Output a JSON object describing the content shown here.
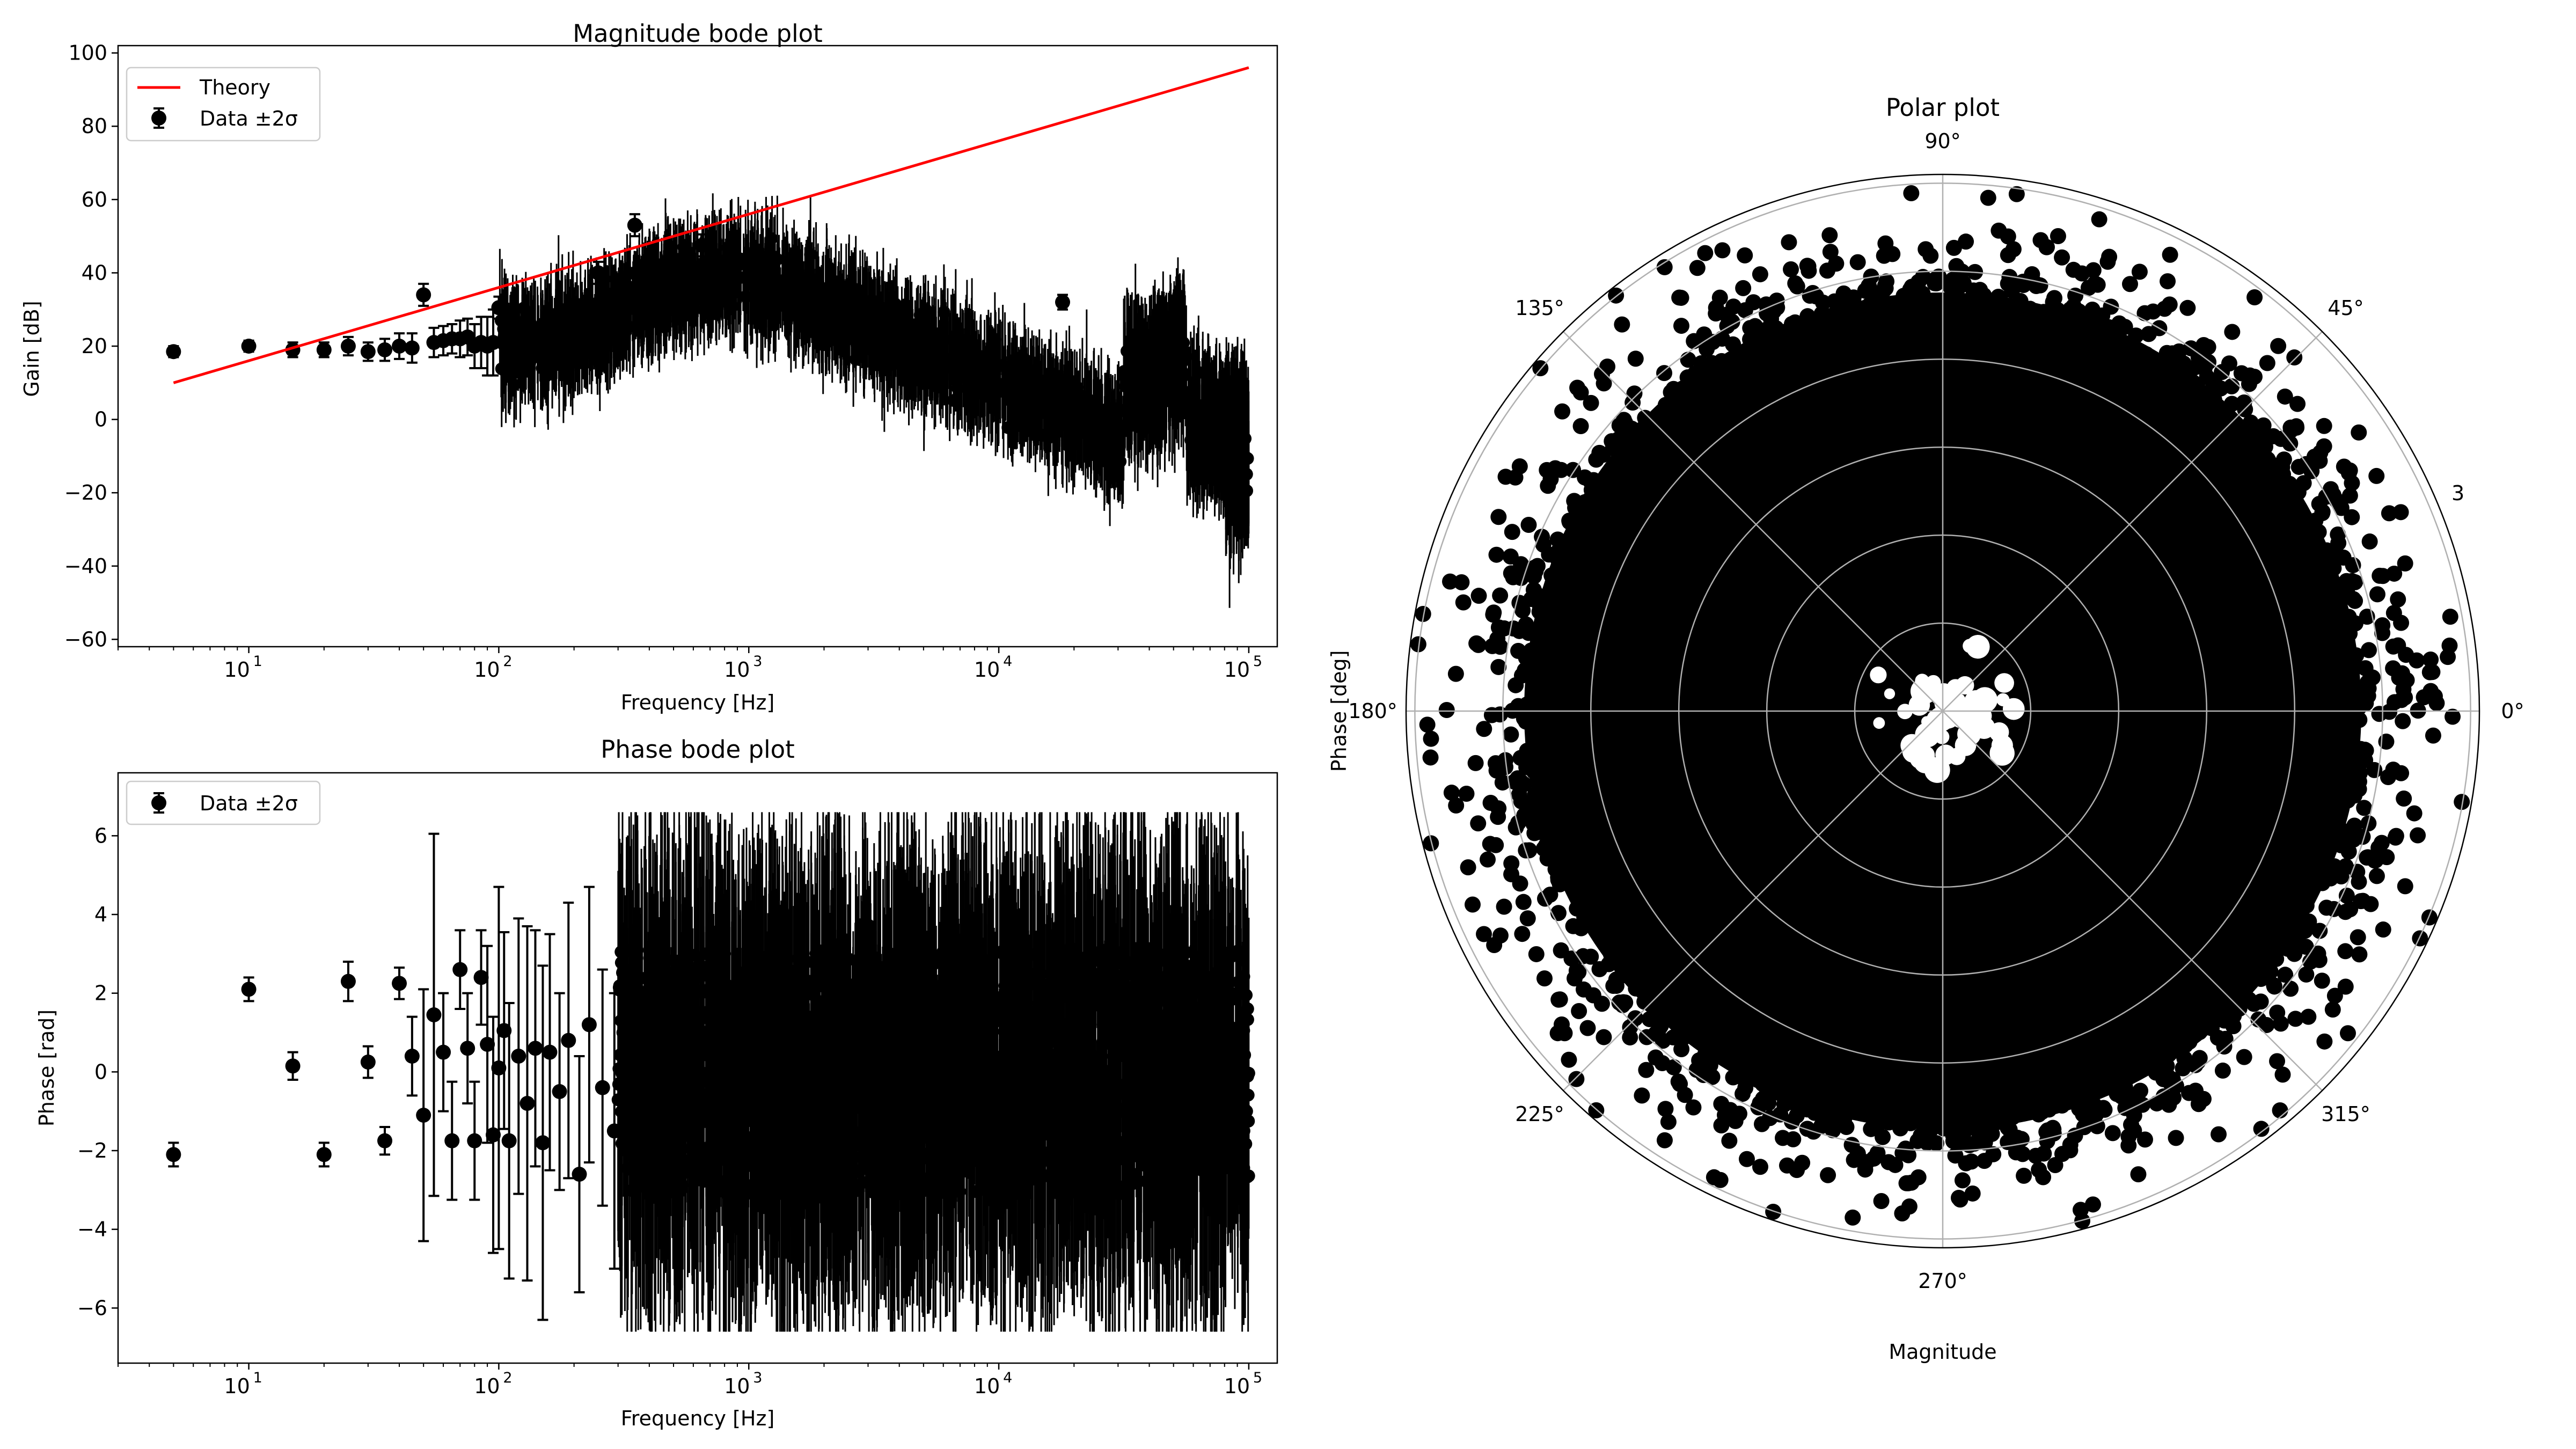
{
  "chart_data": [
    {
      "type": "line",
      "title": "Magnitude bode plot",
      "xlabel": "Frequency [Hz]",
      "ylabel": "Gain [dB]",
      "xscale": "log",
      "xlim": [
        3.0,
        130000
      ],
      "ylim": [
        -62,
        102
      ],
      "yticks": [
        -60,
        -40,
        -20,
        0,
        20,
        40,
        60,
        80,
        100
      ],
      "xticks": [
        {
          "base": "10",
          "exp": "1",
          "value": 10
        },
        {
          "base": "10",
          "exp": "2",
          "value": 100
        },
        {
          "base": "10",
          "exp": "3",
          "value": 1000
        },
        {
          "base": "10",
          "exp": "4",
          "value": 10000
        },
        {
          "base": "10",
          "exp": "5",
          "value": 100000
        }
      ],
      "legend_position": "upper-left",
      "legend": [
        "Theory",
        "Data ±2σ"
      ],
      "theory": {
        "name": "Theory",
        "color": "#ff0000",
        "x": [
          5,
          100000
        ],
        "y": [
          10,
          96
        ]
      },
      "data": {
        "name": "Data ±2σ",
        "color": "#000000",
        "points": [
          {
            "x": 5,
            "y": 18.5,
            "e": 1.5
          },
          {
            "x": 10,
            "y": 20,
            "e": 1.5
          },
          {
            "x": 15,
            "y": 19,
            "e": 2
          },
          {
            "x": 20,
            "y": 19,
            "e": 2
          },
          {
            "x": 25,
            "y": 20,
            "e": 2.5
          },
          {
            "x": 30,
            "y": 18.5,
            "e": 2.5
          },
          {
            "x": 35,
            "y": 19,
            "e": 3
          },
          {
            "x": 40,
            "y": 20,
            "e": 3.5
          },
          {
            "x": 45,
            "y": 19.5,
            "e": 4
          },
          {
            "x": 50,
            "y": 34,
            "e": 3
          },
          {
            "x": 55,
            "y": 21,
            "e": 4
          },
          {
            "x": 60,
            "y": 21.5,
            "e": 4
          },
          {
            "x": 65,
            "y": 22,
            "e": 4
          },
          {
            "x": 70,
            "y": 22,
            "e": 5
          },
          {
            "x": 75,
            "y": 22.5,
            "e": 5
          },
          {
            "x": 80,
            "y": 20,
            "e": 6
          },
          {
            "x": 85,
            "y": 21,
            "e": 7
          },
          {
            "x": 90,
            "y": 20,
            "e": 8
          },
          {
            "x": 95,
            "y": 21,
            "e": 9
          },
          {
            "x": 100,
            "y": 30.5,
            "e": 3
          },
          {
            "x": 250,
            "y": 40,
            "e": 3
          },
          {
            "x": 350,
            "y": 53,
            "e": 3
          },
          {
            "x": 650,
            "y": 47.5,
            "e": 3
          },
          {
            "x": 18000,
            "y": 32,
            "e": 2
          }
        ]
      }
    },
    {
      "type": "scatter",
      "title": "Phase bode plot",
      "xlabel": "Frequency [Hz]",
      "ylabel": "Phase [rad]",
      "xscale": "log",
      "xlim": [
        3.0,
        130000
      ],
      "ylim": [
        -7.4,
        7.6
      ],
      "yticks": [
        -6,
        -4,
        -2,
        0,
        2,
        4,
        6
      ],
      "xticks": [
        {
          "base": "10",
          "exp": "1",
          "value": 10
        },
        {
          "base": "10",
          "exp": "2",
          "value": 100
        },
        {
          "base": "10",
          "exp": "3",
          "value": 1000
        },
        {
          "base": "10",
          "exp": "4",
          "value": 10000
        },
        {
          "base": "10",
          "exp": "5",
          "value": 100000
        }
      ],
      "legend_position": "upper-left",
      "legend": [
        "Data ±2σ"
      ],
      "data": {
        "name": "Data ±2σ",
        "color": "#000000",
        "points": [
          {
            "x": 5,
            "y": -2.1,
            "e": 0.3
          },
          {
            "x": 10,
            "y": 2.1,
            "e": 0.3
          },
          {
            "x": 15,
            "y": 0.15,
            "e": 0.35
          },
          {
            "x": 20,
            "y": -2.1,
            "e": 0.3
          },
          {
            "x": 25,
            "y": 2.3,
            "e": 0.5
          },
          {
            "x": 30,
            "y": 0.25,
            "e": 0.4
          },
          {
            "x": 35,
            "y": -1.75,
            "e": 0.35
          },
          {
            "x": 40,
            "y": 2.25,
            "e": 0.4
          },
          {
            "x": 45,
            "y": 0.4,
            "e": 1.0
          },
          {
            "x": 50,
            "y": -1.1,
            "e": 3.2
          },
          {
            "x": 55,
            "y": 1.45,
            "e": 4.6
          },
          {
            "x": 60,
            "y": 0.5,
            "e": 1.5
          },
          {
            "x": 65,
            "y": -1.75,
            "e": 1.5
          },
          {
            "x": 70,
            "y": 2.6,
            "e": 1.0
          },
          {
            "x": 75,
            "y": 0.6,
            "e": 1.4
          },
          {
            "x": 80,
            "y": -1.75,
            "e": 1.5
          },
          {
            "x": 85,
            "y": 2.4,
            "e": 1.2
          },
          {
            "x": 90,
            "y": 0.7,
            "e": 2.5
          },
          {
            "x": 95,
            "y": -1.6,
            "e": 3.0
          },
          {
            "x": 100,
            "y": 0.1,
            "e": 4.6
          },
          {
            "x": 105,
            "y": 1.05,
            "e": 2.5
          },
          {
            "x": 110,
            "y": -1.75,
            "e": 3.5
          },
          {
            "x": 120,
            "y": 0.4,
            "e": 3.5
          },
          {
            "x": 130,
            "y": -0.8,
            "e": 4.5
          },
          {
            "x": 140,
            "y": 0.6,
            "e": 3.0
          },
          {
            "x": 150,
            "y": -1.8,
            "e": 4.5
          },
          {
            "x": 160,
            "y": 0.5,
            "e": 3.0
          },
          {
            "x": 175,
            "y": -0.5,
            "e": 2.5
          },
          {
            "x": 190,
            "y": 0.8,
            "e": 3.5
          },
          {
            "x": 210,
            "y": -2.6,
            "e": 3.0
          },
          {
            "x": 230,
            "y": 1.2,
            "e": 3.5
          },
          {
            "x": 260,
            "y": -0.4,
            "e": 3.0
          },
          {
            "x": 290,
            "y": -1.5,
            "e": 3.5
          }
        ]
      }
    },
    {
      "type": "scatter",
      "subtype": "polar",
      "title": "Polar plot",
      "xlabel": "Magnitude",
      "ylabel": "Phase [deg]",
      "angle_ticks": [
        "0°",
        "45°",
        "90°",
        "135°",
        "180°",
        "225°",
        "270°",
        "315°"
      ],
      "radial_tick_labels": [
        "3"
      ],
      "radial_gridlines": 6,
      "grid": true,
      "color": "#000000"
    }
  ]
}
